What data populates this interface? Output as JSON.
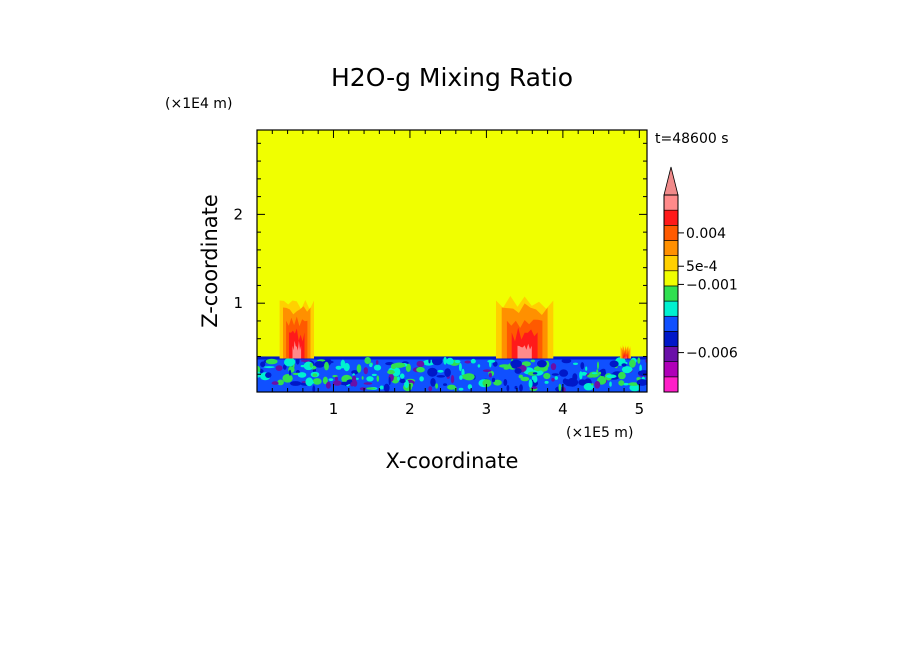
{
  "chart_data": {
    "type": "contour",
    "title": "H2O-g Mixing Ratio",
    "xlabel": "X-coordinate",
    "ylabel": "Z-coordinate",
    "x_scale_label": "(×1E5 m)",
    "y_scale_label": "(×1E4 m)",
    "time_label": "t=48600 s",
    "xlim": [
      0,
      5.1
    ],
    "ylim": [
      0,
      2.95
    ],
    "x_ticks": [
      1,
      2,
      3,
      4,
      5
    ],
    "y_ticks": [
      1,
      2
    ],
    "background_level_color": "#f0ff00",
    "colorbar": {
      "levels": [
        {
          "color": "#ff1fc8"
        },
        {
          "color": "#b000b8"
        },
        {
          "color": "#6a10a8"
        },
        {
          "color": "#0018c8"
        },
        {
          "color": "#1050ff"
        },
        {
          "color": "#00f0d0"
        },
        {
          "color": "#30e050"
        },
        {
          "color": "#f0ff00"
        },
        {
          "color": "#ffd000"
        },
        {
          "color": "#ff9000"
        },
        {
          "color": "#ff5a00"
        },
        {
          "color": "#ff1a1a"
        },
        {
          "color": "#ff8a8a"
        }
      ],
      "extend_color": "#f08a8a",
      "tick_labels": [
        {
          "text": "0.004",
          "after_level": 10.5
        },
        {
          "text": "5e-4",
          "after_level": 8.3
        },
        {
          "text": "−0.001",
          "after_level": 7.1
        },
        {
          "text": "−0.006",
          "after_level": 2.6
        }
      ]
    },
    "features": [
      {
        "name": "plume-west",
        "x_center": 0.52,
        "top_z": 1.03,
        "width": 0.45
      },
      {
        "name": "plume-central",
        "x_center": 3.5,
        "top_z": 1.03,
        "width": 0.75
      },
      {
        "name": "plume-east",
        "x_center": 4.82,
        "top_z": 0.52,
        "width": 0.14
      }
    ],
    "boundary_layer_top_z": 0.4
  }
}
